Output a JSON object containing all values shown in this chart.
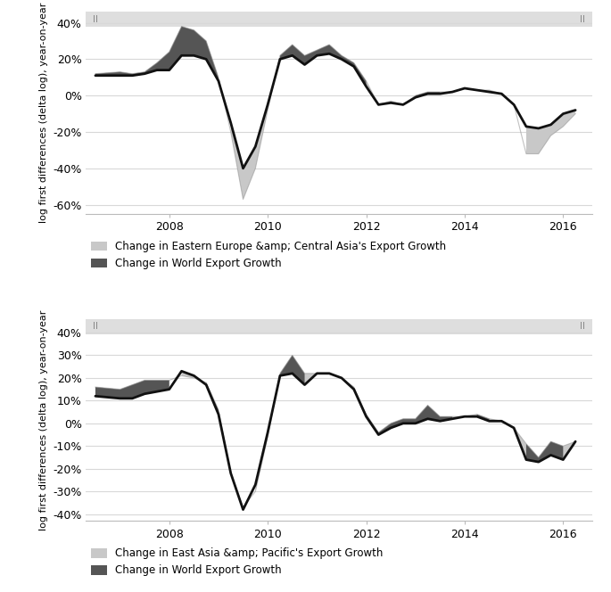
{
  "graph_A": {
    "ylabel": "log first differences (delta log), year-on-year",
    "legend1": "Change in Eastern Europe &amp; Central Asia's Export Growth",
    "legend2": "Change in World Export Growth",
    "ylim": [
      -0.65,
      0.46
    ],
    "yticks": [
      -0.6,
      -0.4,
      -0.2,
      0.0,
      0.2,
      0.4
    ],
    "ytick_labels": [
      "-60%",
      "-40%",
      "-20%",
      "0%",
      "20%",
      "40%"
    ],
    "x": [
      2006.5,
      2007.0,
      2007.25,
      2007.5,
      2007.75,
      2008.0,
      2008.25,
      2008.5,
      2008.75,
      2009.0,
      2009.25,
      2009.5,
      2009.75,
      2010.0,
      2010.25,
      2010.5,
      2010.75,
      2011.0,
      2011.25,
      2011.5,
      2011.75,
      2012.0,
      2012.25,
      2012.5,
      2012.75,
      2013.0,
      2013.25,
      2013.5,
      2013.75,
      2014.0,
      2014.25,
      2014.5,
      2014.75,
      2015.0,
      2015.25,
      2015.5,
      2015.75,
      2016.0,
      2016.25
    ],
    "region": [
      0.12,
      0.13,
      0.12,
      0.13,
      0.18,
      0.24,
      0.38,
      0.36,
      0.3,
      0.1,
      -0.2,
      -0.57,
      -0.4,
      -0.08,
      0.22,
      0.28,
      0.22,
      0.25,
      0.28,
      0.22,
      0.18,
      0.08,
      -0.05,
      -0.03,
      -0.05,
      0.0,
      0.02,
      0.02,
      0.02,
      0.04,
      0.03,
      0.03,
      0.01,
      -0.05,
      -0.32,
      -0.32,
      -0.22,
      -0.17,
      -0.1
    ],
    "world": [
      0.11,
      0.11,
      0.11,
      0.12,
      0.14,
      0.14,
      0.22,
      0.22,
      0.2,
      0.08,
      -0.15,
      -0.4,
      -0.28,
      -0.05,
      0.2,
      0.22,
      0.17,
      0.22,
      0.23,
      0.2,
      0.16,
      0.05,
      -0.05,
      -0.04,
      -0.05,
      -0.01,
      0.01,
      0.01,
      0.02,
      0.04,
      0.03,
      0.02,
      0.01,
      -0.05,
      -0.17,
      -0.18,
      -0.16,
      -0.1,
      -0.08
    ]
  },
  "graph_B": {
    "ylabel": "log first differences (delta log), year-on-year",
    "legend1": "Change in East Asia &amp; Pacific's Export Growth",
    "legend2": "Change in World Export Growth",
    "ylim": [
      -0.43,
      0.46
    ],
    "yticks": [
      -0.4,
      -0.3,
      -0.2,
      -0.1,
      0.0,
      0.1,
      0.2,
      0.3,
      0.4
    ],
    "ytick_labels": [
      "-40%",
      "-30%",
      "-20%",
      "-10%",
      "0%",
      "10%",
      "20%",
      "30%",
      "40%"
    ],
    "x": [
      2006.5,
      2007.0,
      2007.25,
      2007.5,
      2007.75,
      2008.0,
      2008.25,
      2008.5,
      2008.75,
      2009.0,
      2009.25,
      2009.5,
      2009.75,
      2010.0,
      2010.25,
      2010.5,
      2010.75,
      2011.0,
      2011.25,
      2011.5,
      2011.75,
      2012.0,
      2012.25,
      2012.5,
      2012.75,
      2013.0,
      2013.25,
      2013.5,
      2013.75,
      2014.0,
      2014.25,
      2014.5,
      2014.75,
      2015.0,
      2015.25,
      2015.5,
      2015.75,
      2016.0,
      2016.25
    ],
    "region": [
      0.16,
      0.15,
      0.17,
      0.19,
      0.19,
      0.19,
      0.21,
      0.2,
      0.18,
      0.06,
      -0.22,
      -0.37,
      -0.3,
      -0.06,
      0.22,
      0.3,
      0.22,
      0.22,
      0.22,
      0.2,
      0.16,
      0.04,
      -0.04,
      0.0,
      0.02,
      0.02,
      0.08,
      0.03,
      0.03,
      0.03,
      0.04,
      0.02,
      0.01,
      -0.02,
      -0.09,
      -0.15,
      -0.08,
      -0.1,
      -0.08
    ],
    "world": [
      0.12,
      0.11,
      0.11,
      0.13,
      0.14,
      0.15,
      0.23,
      0.21,
      0.17,
      0.04,
      -0.22,
      -0.38,
      -0.27,
      -0.04,
      0.21,
      0.22,
      0.17,
      0.22,
      0.22,
      0.2,
      0.15,
      0.03,
      -0.05,
      -0.02,
      0.0,
      0.0,
      0.02,
      0.01,
      0.02,
      0.03,
      0.03,
      0.01,
      0.01,
      -0.02,
      -0.16,
      -0.17,
      -0.14,
      -0.16,
      -0.08
    ]
  },
  "xlim": [
    2006.3,
    2016.6
  ],
  "xticks": [
    2008,
    2010,
    2012,
    2014,
    2016
  ],
  "light_gray": "#c8c8c8",
  "dark_gray": "#555555",
  "world_line_color": "#111111",
  "region_line_color": "#999999",
  "bg_bar_color": "#dedede",
  "grid_color": "#d8d8d8"
}
